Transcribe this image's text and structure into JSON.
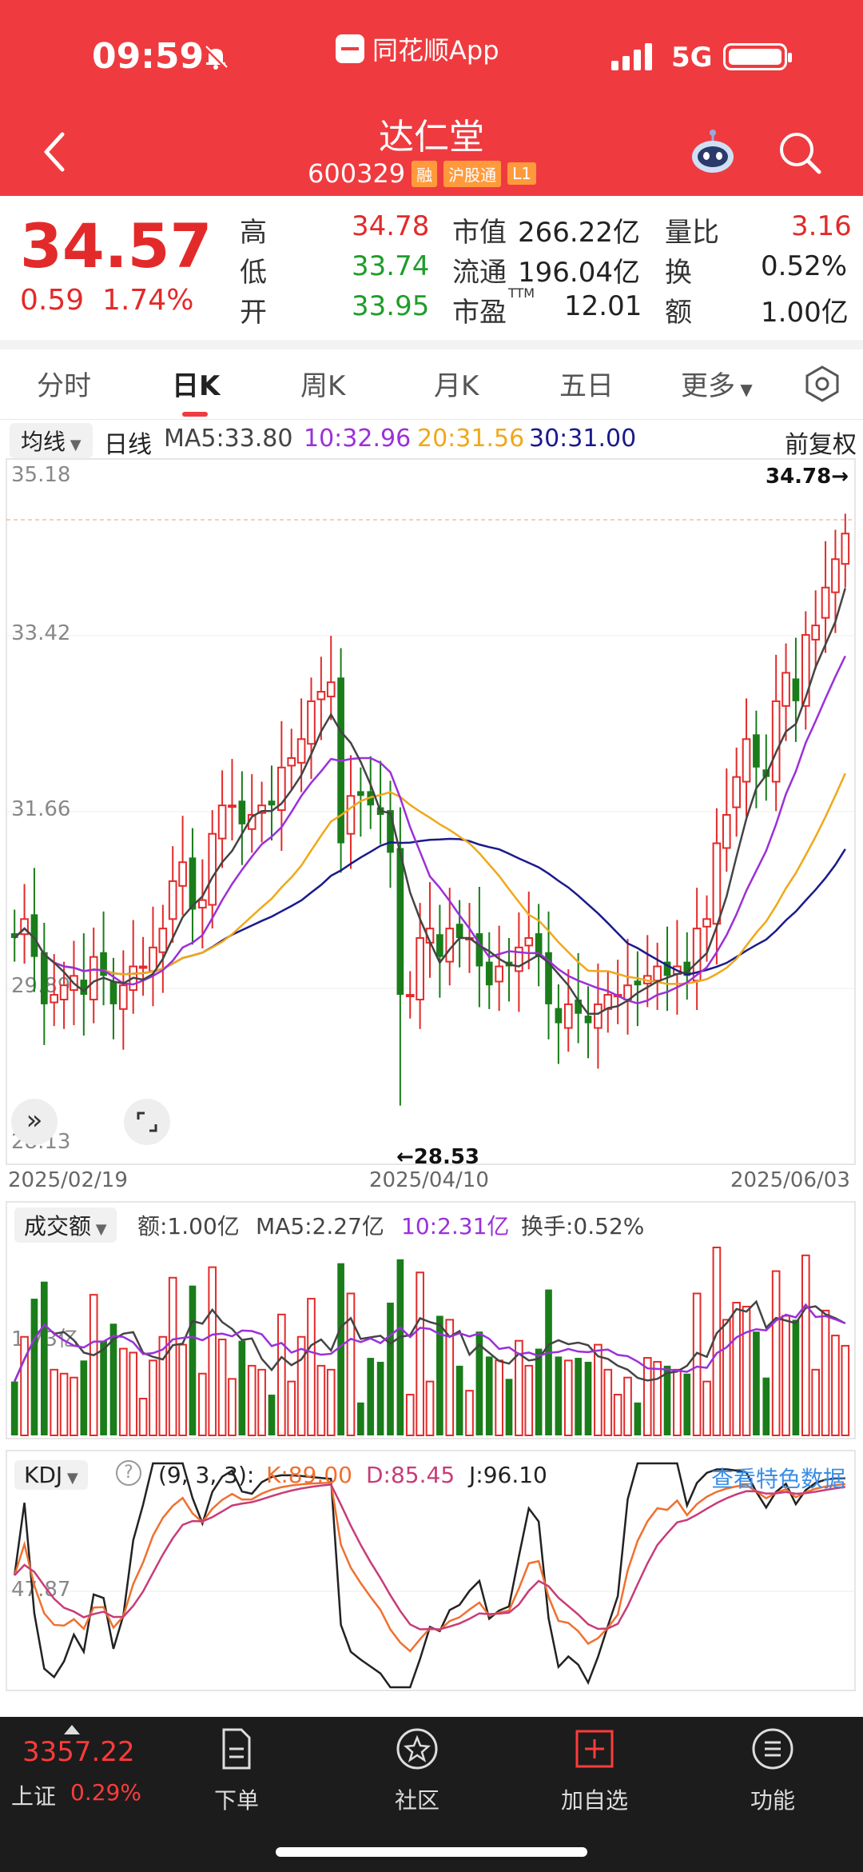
{
  "status": {
    "time": "09:59",
    "app_name": "同花顺App",
    "network": "5G"
  },
  "stock": {
    "name": "达仁堂",
    "code": "600329",
    "tags": [
      "融",
      "沪股通",
      "L1"
    ],
    "price": "34.57",
    "change": "0.59",
    "change_pct": "1.74%",
    "high_label": "高",
    "high": "34.78",
    "low_label": "低",
    "low": "33.74",
    "open_label": "开",
    "open": "33.95",
    "mktcap_label": "市值",
    "mktcap": "266.22亿",
    "float_label": "流通",
    "float": "196.04亿",
    "pe_label": "市盈",
    "pe_sup": "TTM",
    "pe": "12.01",
    "vr_label": "量比",
    "vr": "3.16",
    "turn_label": "换",
    "turn": "0.52%",
    "amt_label": "额",
    "amt": "1.00亿"
  },
  "tabs": [
    "分时",
    "日K",
    "周K",
    "月K",
    "五日",
    "更多"
  ],
  "active_tab": "日K",
  "ma": {
    "selector": "均线",
    "period": "日线",
    "ma5": "MA5:33.80",
    "ma10": "10:32.96",
    "ma20": "20:31.56",
    "ma30": "30:31.00",
    "adjust": "前复权"
  },
  "colors": {
    "up": "#e32a2a",
    "down": "#1a7d1a",
    "ma5": "#333333",
    "ma10": "#9b30d9",
    "ma20": "#f0a818",
    "ma30": "#1a1a8c",
    "k": "#222222",
    "d": "#f07030",
    "j": "#c83c78"
  },
  "kline": {
    "y_labels": [
      "35.18",
      "33.42",
      "31.66",
      "29.89",
      "28.13"
    ],
    "high_mark": "34.78→",
    "low_mark": "←28.53",
    "dates": [
      "2025/02/19",
      "2025/04/10",
      "2025/06/03"
    ]
  },
  "volume": {
    "selector": "成交额",
    "amount": "额:1.00亿",
    "ma5": "MA5:2.27亿",
    "ma10": "10:2.31亿",
    "turnover": "换手:0.52%",
    "y_label": "1.73亿"
  },
  "kdj": {
    "selector": "KDJ",
    "params": "(9, 3, 3):",
    "k": "K:89.00",
    "d": "D:85.45",
    "j": "J:96.10",
    "link": "查看特色数据",
    "y_label": "47.87"
  },
  "chart_data": {
    "type": "candlestick",
    "x_start": "2025/02/19",
    "x_mid": "2025/04/10",
    "x_end": "2025/06/03",
    "ylim": [
      28.13,
      35.18
    ],
    "period_high": 34.78,
    "period_low": 28.53,
    "close": [
      30.3,
      30.5,
      30.1,
      29.6,
      29.7,
      29.8,
      29.9,
      29.7,
      30.1,
      29.9,
      29.6,
      29.8,
      30.0,
      30.0,
      30.2,
      30.4,
      30.9,
      31.1,
      30.6,
      30.7,
      31.4,
      31.7,
      31.7,
      31.5,
      31.6,
      31.7,
      31.7,
      32.1,
      32.2,
      32.4,
      32.8,
      32.9,
      33.0,
      31.3,
      31.8,
      31.8,
      31.7,
      31.6,
      31.2,
      29.7,
      29.7,
      30.3,
      30.4,
      30.1,
      30.4,
      30.3,
      30.3,
      30.0,
      29.8,
      30.0,
      30.0,
      30.2,
      30.3,
      30.1,
      29.6,
      29.4,
      29.6,
      29.5,
      29.4,
      29.6,
      29.7,
      29.7,
      29.8,
      29.8,
      29.9,
      30.0,
      29.9,
      30.0,
      29.9,
      30.4,
      30.5,
      31.3,
      31.6,
      32.0,
      32.4,
      32.1,
      32.0,
      32.8,
      33.1,
      32.8,
      33.5,
      33.6,
      34.0,
      34.3,
      34.57
    ]
  },
  "footer": {
    "index_value": "3357.22",
    "index_name": "上证",
    "index_chg": "0.29%",
    "items": [
      "下单",
      "社区",
      "加自选",
      "功能"
    ]
  }
}
